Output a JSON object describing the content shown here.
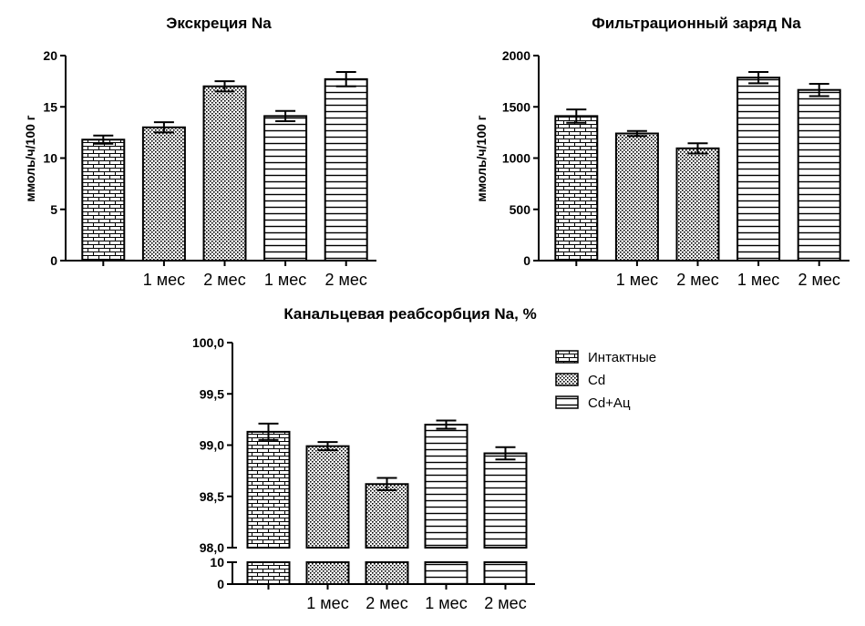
{
  "chart_data": [
    {
      "type": "bar",
      "title": "Экскреция Na",
      "ylabel": "ммоль/ч/100 г",
      "ylim": [
        0,
        20
      ],
      "yticks": [
        "0",
        "5",
        "10",
        "15",
        "20"
      ],
      "categories": [
        "",
        "1 мес",
        "2 мес",
        "1 мес",
        "2 мес"
      ],
      "series": [
        {
          "name": "Интактные",
          "pattern": "brick",
          "values": [
            11.8,
            null,
            null,
            null,
            null
          ],
          "errors": [
            0.4,
            null,
            null,
            null,
            null
          ]
        },
        {
          "name": "Cd",
          "pattern": "dots",
          "values": [
            null,
            13.0,
            17.0,
            null,
            null
          ],
          "errors": [
            null,
            0.5,
            0.5,
            null,
            null
          ]
        },
        {
          "name": "Cd+Ац",
          "pattern": "hlines",
          "values": [
            null,
            null,
            null,
            14.1,
            17.7
          ],
          "errors": [
            null,
            null,
            null,
            0.5,
            0.7
          ]
        }
      ]
    },
    {
      "type": "bar",
      "title": "Фильтрационный заряд Na",
      "ylabel": "ммоль/ч/100 г",
      "ylim": [
        0,
        2000
      ],
      "yticks": [
        "0",
        "500",
        "1000",
        "1500",
        "2000"
      ],
      "categories": [
        "",
        "1 мес",
        "2 мес",
        "1 мес",
        "2 мес"
      ],
      "series": [
        {
          "name": "Интактные",
          "pattern": "brick",
          "values": [
            1410,
            null,
            null,
            null,
            null
          ],
          "errors": [
            65,
            null,
            null,
            null,
            null
          ]
        },
        {
          "name": "Cd",
          "pattern": "dots",
          "values": [
            null,
            1240,
            1095,
            null,
            null
          ],
          "errors": [
            null,
            25,
            50,
            null,
            null
          ]
        },
        {
          "name": "Cd+Ац",
          "pattern": "hlines",
          "values": [
            null,
            null,
            null,
            1785,
            1665
          ],
          "errors": [
            null,
            null,
            null,
            55,
            60
          ]
        }
      ]
    },
    {
      "type": "bar",
      "title": "Канальцевая реабсорбция Na, %",
      "ylabel": "",
      "ylim": [
        98.0,
        100.0
      ],
      "ybreak": {
        "lower_ticks": [
          "0",
          "10"
        ],
        "upper_ticks": [
          "98,0",
          "98,5",
          "99,0",
          "99,5",
          "100,0"
        ]
      },
      "categories": [
        "",
        "1 мес",
        "2 мес",
        "1 мес",
        "2 мес"
      ],
      "series": [
        {
          "name": "Интактные",
          "pattern": "brick",
          "values": [
            99.13,
            null,
            null,
            null,
            null
          ],
          "errors": [
            0.08,
            null,
            null,
            null,
            null
          ]
        },
        {
          "name": "Cd",
          "pattern": "dots",
          "values": [
            null,
            98.99,
            98.62,
            null,
            null
          ],
          "errors": [
            null,
            0.04,
            0.06,
            null,
            null
          ]
        },
        {
          "name": "Cd+Ац",
          "pattern": "hlines",
          "values": [
            null,
            null,
            null,
            99.2,
            98.92
          ],
          "errors": [
            null,
            null,
            null,
            0.04,
            0.06
          ]
        }
      ],
      "legend": {
        "position": "right",
        "items": [
          {
            "label": "Интактные",
            "pattern": "brick"
          },
          {
            "label": "Cd",
            "pattern": "dots"
          },
          {
            "label": "Cd+Ац",
            "pattern": "hlines"
          }
        ]
      }
    }
  ]
}
